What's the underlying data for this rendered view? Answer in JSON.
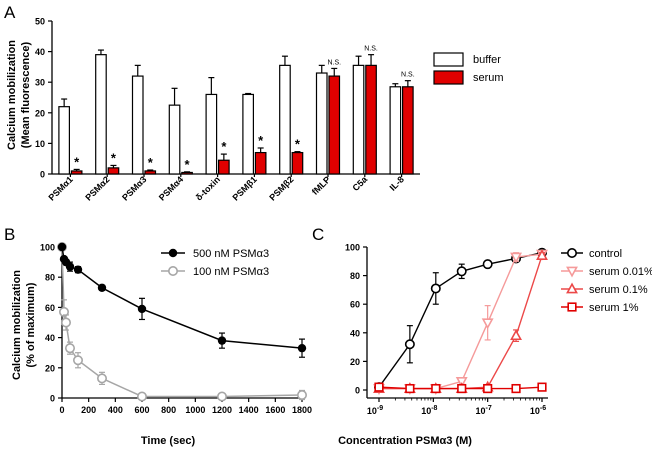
{
  "panels": {
    "a": "A",
    "b": "B",
    "c": "C"
  },
  "colors": {
    "buffer": "#ffffff",
    "serum": "#e00000",
    "black": "#000000",
    "grey": "#a6a6a6",
    "control": "#000000",
    "serum_001": "#f59a9a",
    "serum_01": "#ec4848",
    "serum_1": "#e00000"
  },
  "chart_data": [
    {
      "type": "bar",
      "panel": "A",
      "ylabel": "Calcium mobilization",
      "ylabel2": "(Mean fluorescence)",
      "ylim": [
        0,
        50
      ],
      "yticks": [
        0,
        10,
        20,
        30,
        40,
        50
      ],
      "categories": [
        "PSMα1",
        "PSMα2",
        "PSMα3",
        "PSMα4",
        "δ-toxin",
        "PSMβ1",
        "PSMβ2",
        "fMLP",
        "C5a",
        "IL-8"
      ],
      "series": [
        {
          "name": "buffer",
          "values": [
            22,
            39,
            32,
            22.5,
            26,
            26,
            35.5,
            33,
            35.5,
            28.5
          ],
          "errors": [
            2.5,
            1.5,
            3.5,
            5.5,
            5.5,
            0.3,
            3,
            2.5,
            3,
            1
          ]
        },
        {
          "name": "serum",
          "values": [
            1,
            2,
            1,
            0.5,
            4.5,
            7,
            7,
            32,
            35.5,
            28.5
          ],
          "errors": [
            0.5,
            0.8,
            0.3,
            0.2,
            2,
            1.5,
            0.3,
            2.5,
            3.5,
            2
          ]
        }
      ],
      "annotations": [
        "*",
        "*",
        "*",
        "*",
        "*",
        "*",
        "*",
        "N.S.",
        "N.S.",
        "N.S."
      ],
      "legend": "top-right"
    },
    {
      "type": "line",
      "panel": "B",
      "xlabel": "Time (sec)",
      "ylabel": "Calcium mobilization",
      "ylabel2": "(% of maximum)",
      "xlim": [
        0,
        1800
      ],
      "ylim": [
        0,
        100
      ],
      "xticks": [
        0,
        200,
        400,
        600,
        800,
        1000,
        1200,
        1400,
        1600,
        1800
      ],
      "yticks": [
        0,
        20,
        40,
        60,
        80,
        100
      ],
      "series": [
        {
          "name": "500 nM PSMα3",
          "x": [
            0,
            15,
            30,
            60,
            120,
            300,
            600,
            1200,
            1800
          ],
          "y": [
            100,
            92,
            90,
            87,
            85,
            73,
            59,
            38,
            33
          ],
          "errors": [
            0,
            0,
            0,
            3,
            2,
            1,
            7,
            5,
            6
          ]
        },
        {
          "name": "100 nM PSMα3",
          "x": [
            0,
            15,
            30,
            60,
            120,
            300,
            600,
            1200,
            1800
          ],
          "y": [
            100,
            57,
            50,
            33,
            25,
            13,
            1,
            1,
            2
          ],
          "errors": [
            0,
            8,
            5,
            4,
            5,
            4,
            1,
            1,
            3
          ]
        }
      ],
      "legend": "top-right"
    },
    {
      "type": "line",
      "panel": "C",
      "xlabel": "Concentration PSMα3 (M)",
      "x_scale": "log",
      "xlim": [
        1e-09,
        1e-06
      ],
      "ylim": [
        0,
        100
      ],
      "xticks": [
        1e-09,
        1e-08,
        1e-07,
        1e-06
      ],
      "xtick_labels": {
        "base": "10",
        "exps": [
          "-9",
          "-8",
          "-7",
          "-6"
        ]
      },
      "yticks": [
        0,
        20,
        40,
        60,
        80,
        100
      ],
      "series": [
        {
          "name": "control",
          "marker": "circle",
          "x": [
            1e-09,
            3.7e-09,
            1.11e-08,
            3.33e-08,
            1e-07,
            3.33e-07,
            1e-06
          ],
          "y": [
            2,
            32,
            71,
            83,
            88,
            92,
            96
          ],
          "errors": [
            1,
            13,
            11,
            5,
            2,
            2,
            2
          ]
        },
        {
          "name": "serum 0.01%",
          "marker": "triangle-down",
          "x": [
            1e-09,
            3.7e-09,
            1.11e-08,
            3.33e-08,
            1e-07,
            3.33e-07,
            1e-06
          ],
          "y": [
            1,
            1,
            1,
            6,
            47,
            93,
            95
          ],
          "errors": [
            1,
            1,
            1,
            2,
            12,
            3,
            2
          ]
        },
        {
          "name": "serum 0.1%",
          "marker": "triangle-up",
          "x": [
            1e-09,
            3.7e-09,
            1.11e-08,
            3.33e-08,
            1e-07,
            3.33e-07,
            1e-06
          ],
          "y": [
            1,
            1,
            1,
            1,
            2,
            38,
            94
          ],
          "errors": [
            1,
            1,
            1,
            1,
            1,
            4,
            2
          ]
        },
        {
          "name": "serum 1%",
          "marker": "square",
          "x": [
            1e-09,
            3.7e-09,
            1.11e-08,
            3.33e-08,
            1e-07,
            3.33e-07,
            1e-06
          ],
          "y": [
            2,
            1,
            1,
            1,
            1,
            1,
            2
          ],
          "errors": [
            1,
            1,
            1,
            1,
            1,
            1,
            1
          ]
        }
      ],
      "legend": "top-right"
    }
  ]
}
